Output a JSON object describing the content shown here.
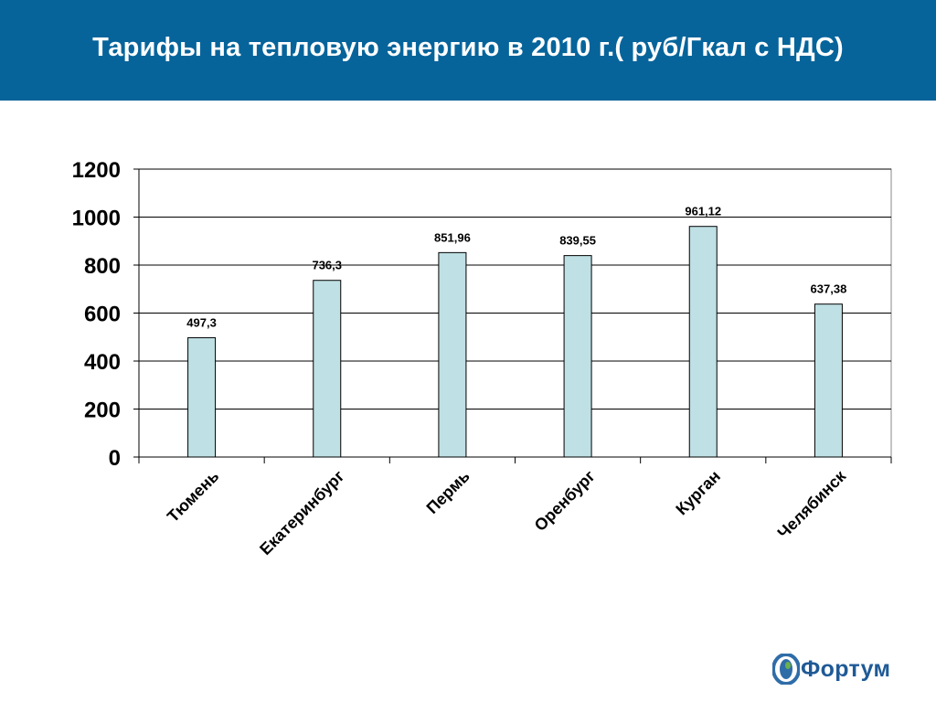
{
  "header": {
    "title": "Тарифы на тепловую энергию в 2010 г.( руб/Гкал с НДС)"
  },
  "logo": {
    "text": "Фортум",
    "icon": "fortum-logo-icon"
  },
  "colors": {
    "header_bg": "#06649b",
    "header_text": "#ffffff",
    "bar_fill": "#bfe0e4",
    "bar_stroke": "#000000",
    "gridline": "#000000",
    "logo_text": "#1f5a97",
    "logo_mark": "#2f6da8",
    "logo_mark_accent": "#6ab04c"
  },
  "chart_data": {
    "type": "bar",
    "title": "",
    "xlabel": "",
    "ylabel": "",
    "categories": [
      "Тюмень",
      "Екатеринбург",
      "Пермь",
      "Оренбург",
      "Курган",
      "Челябинск"
    ],
    "values": [
      497.3,
      736.3,
      851.96,
      839.55,
      961.12,
      637.38
    ],
    "value_labels": [
      "497,3",
      "736,3",
      "851,96",
      "839,55",
      "961,12",
      "637,38"
    ],
    "ylim": [
      0,
      1200
    ],
    "yticks": [
      0,
      200,
      400,
      600,
      800,
      1000,
      1200
    ],
    "grid": true,
    "legend": "none"
  }
}
